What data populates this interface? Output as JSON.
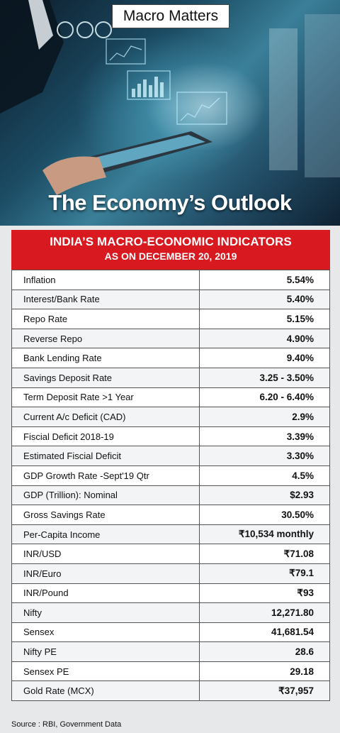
{
  "header": {
    "badge": "Macro Matters",
    "title": "The Economy’s Outlook"
  },
  "table_header": {
    "line1": "INDIA’S MACRO-ECONOMIC INDICATORS",
    "line2": "AS ON DECEMBER 20, 2019"
  },
  "rows": [
    {
      "label": "Inflation",
      "value": "5.54%"
    },
    {
      "label": "Interest/Bank Rate",
      "value": "5.40%"
    },
    {
      "label": "Repo Rate",
      "value": "5.15%"
    },
    {
      "label": "Reverse Repo",
      "value": "4.90%"
    },
    {
      "label": "Bank Lending Rate",
      "value": "9.40%"
    },
    {
      "label": "Savings Deposit Rate",
      "value": "3.25 - 3.50%"
    },
    {
      "label": "Term Deposit Rate >1 Year",
      "value": "6.20 - 6.40%"
    },
    {
      "label": "Current A/c Deficit (CAD)",
      "value": "2.9%"
    },
    {
      "label": "Fiscial Deficit 2018-19",
      "value": "3.39%"
    },
    {
      "label": "Estimated Fiscial Deficit",
      "value": "3.30%"
    },
    {
      "label": "GDP Growth Rate -Sept'19 Qtr",
      "value": "4.5%"
    },
    {
      "label": "GDP (Trillion): Nominal",
      "value": "$2.93"
    },
    {
      "label": "Gross Savings Rate",
      "value": "30.50%"
    },
    {
      "label": "Per-Capita Income",
      "value": "₹10,534 monthly"
    },
    {
      "label": "INR/USD",
      "value": "₹71.08"
    },
    {
      "label": "INR/Euro",
      "value": "₹79.1"
    },
    {
      "label": "INR/Pound",
      "value": "₹93"
    },
    {
      "label": "Nifty",
      "value": "12,271.80"
    },
    {
      "label": "Sensex",
      "value": "41,681.54"
    },
    {
      "label": "Nifty PE",
      "value": "28.6"
    },
    {
      "label": "Sensex PE",
      "value": "29.18"
    },
    {
      "label": "Gold Rate (MCX)",
      "value": "₹37,957"
    }
  ],
  "footer": {
    "source": "Source : RBI, Government Data"
  },
  "colors": {
    "accent": "#d8191f",
    "panel": "#e7e8ea"
  }
}
